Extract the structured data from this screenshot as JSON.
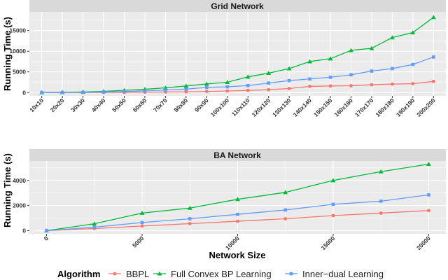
{
  "chart_data": [
    {
      "type": "line",
      "title": "Grid Network",
      "xlabel": "",
      "ylabel": "Running Time (s)",
      "categories": [
        "10x10",
        "20x20",
        "30x30",
        "40x40",
        "50x50",
        "60x60",
        "70x70",
        "80x80",
        "90x90",
        "100x100",
        "110x110",
        "120x120",
        "130x130",
        "140x140",
        "150x150",
        "160x160",
        "170x170",
        "180x180",
        "190x190",
        "200x200"
      ],
      "ylim": [
        -800,
        19500
      ],
      "yticks": [
        0,
        5000,
        10000,
        15000
      ],
      "series": [
        {
          "name": "BBPL",
          "values": [
            0,
            10,
            20,
            40,
            60,
            90,
            140,
            190,
            260,
            380,
            520,
            700,
            980,
            1500,
            1600,
            1650,
            1900,
            2050,
            2150,
            2700
          ]
        },
        {
          "name": "Full Convex BP Learning",
          "values": [
            20,
            60,
            150,
            300,
            550,
            800,
            1150,
            1600,
            2100,
            2500,
            3800,
            4700,
            5800,
            7500,
            8200,
            10200,
            10700,
            13300,
            14500,
            18200
          ]
        },
        {
          "name": "Inner-dual Learning",
          "values": [
            10,
            30,
            70,
            150,
            260,
            420,
            620,
            850,
            1250,
            1400,
            1700,
            2300,
            2900,
            3300,
            3700,
            4300,
            5200,
            5800,
            6800,
            8600
          ]
        }
      ]
    },
    {
      "type": "line",
      "title": "BA Network",
      "xlabel": "Network Size",
      "ylabel": "Running Time (s)",
      "xlim": [
        0,
        20000
      ],
      "xticks": [
        0,
        5000,
        10000,
        15000,
        20000
      ],
      "ylim": [
        -250,
        5550
      ],
      "yticks": [
        0,
        2000,
        4000
      ],
      "series": [
        {
          "name": "BBPL",
          "x": [
            0,
            2500,
            5000,
            7500,
            10000,
            12500,
            15000,
            17500,
            20000
          ],
          "values": [
            0,
            170,
            370,
            560,
            750,
            950,
            1200,
            1400,
            1600
          ]
        },
        {
          "name": "Full Convex BP Learning",
          "x": [
            0,
            2500,
            5000,
            7500,
            10000,
            12500,
            15000,
            17500,
            20000
          ],
          "values": [
            0,
            550,
            1400,
            1800,
            2500,
            3050,
            4000,
            4700,
            5300
          ]
        },
        {
          "name": "Inner-dual Learning",
          "x": [
            0,
            2500,
            5000,
            7500,
            10000,
            12500,
            15000,
            17500,
            20000
          ],
          "values": [
            0,
            280,
            650,
            950,
            1300,
            1650,
            2100,
            2350,
            2850
          ]
        }
      ]
    }
  ],
  "legend": {
    "title": "Algorithm",
    "items": [
      "BBPL",
      "Full Convex BP Learning",
      "Inner−dual Learning"
    ]
  },
  "colors": {
    "BBPL": "#F8766D",
    "Full Convex BP Learning": "#00BA38",
    "Inner-dual Learning": "#619CFF",
    "panel_bg": "#EBEBEB",
    "strip_bg": "#D9D9D9",
    "grid": "#FFFFFF"
  }
}
